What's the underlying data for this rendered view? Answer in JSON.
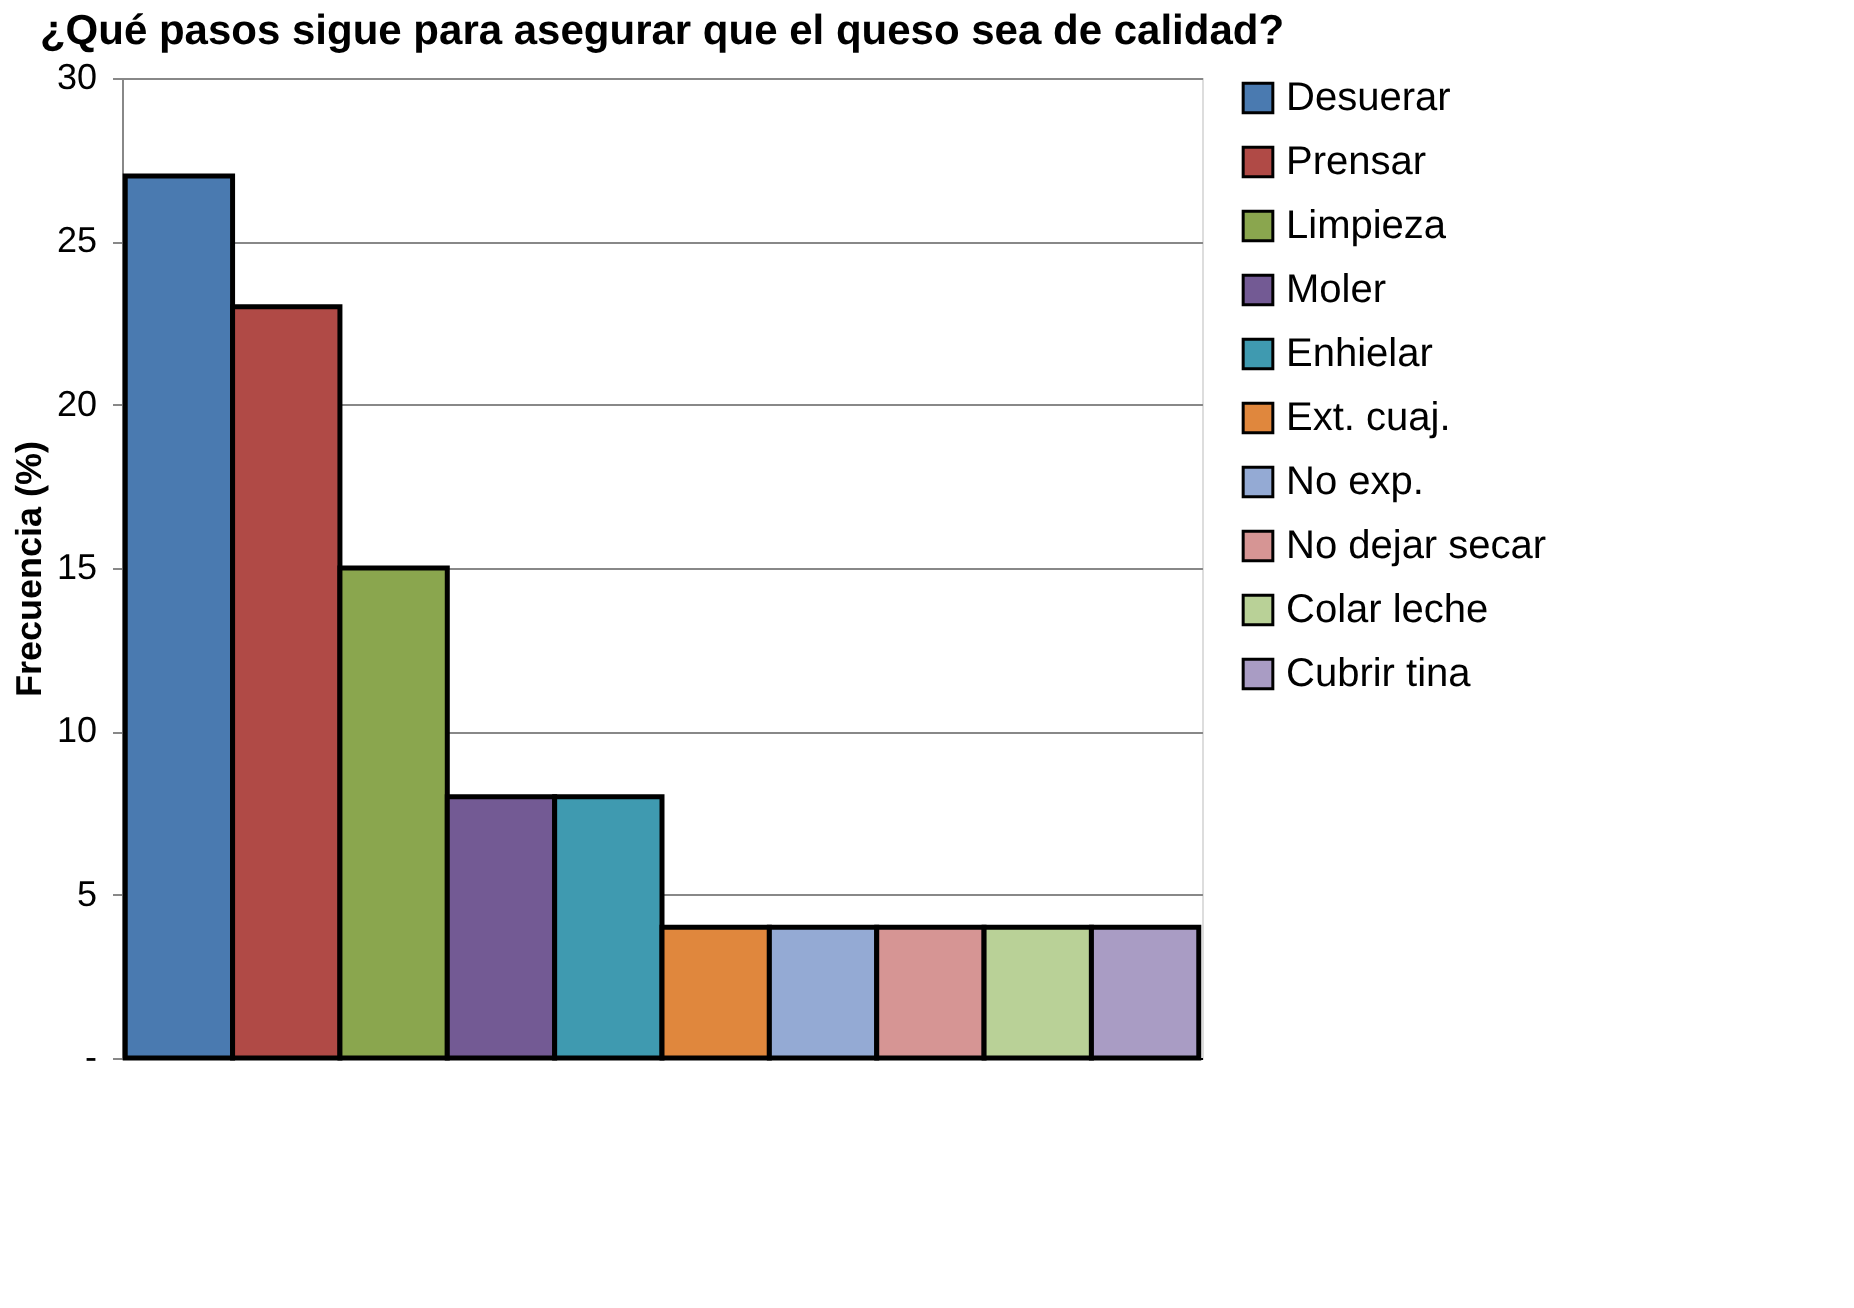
{
  "chart_data": {
    "type": "bar",
    "title": "¿Qué pasos sigue para asegurar que el queso sea de calidad?",
    "ylabel": "Frecuencia (%)",
    "categories": [
      null,
      null,
      null,
      null,
      null,
      null,
      null,
      null,
      null,
      null
    ],
    "series": [
      {
        "name": "Desuerar",
        "color": "#4a7ab0",
        "values": [
          27,
          null,
          null,
          null,
          null,
          null,
          null,
          null,
          null,
          null
        ]
      },
      {
        "name": "Prensar",
        "color": "#b04a46",
        "values": [
          null,
          23,
          null,
          null,
          null,
          null,
          null,
          null,
          null,
          null
        ]
      },
      {
        "name": "Limpieza",
        "color": "#8aa64e",
        "values": [
          null,
          null,
          15,
          null,
          null,
          null,
          null,
          null,
          null,
          null
        ]
      },
      {
        "name": "Moler",
        "color": "#735a94",
        "values": [
          null,
          null,
          null,
          8,
          null,
          null,
          null,
          null,
          null,
          null
        ]
      },
      {
        "name": "Enhielar",
        "color": "#3f9ab0",
        "values": [
          null,
          null,
          null,
          null,
          8,
          null,
          null,
          null,
          null,
          null
        ]
      },
      {
        "name": "Ext. cuaj.",
        "color": "#e0873d",
        "values": [
          null,
          null,
          null,
          null,
          null,
          4,
          null,
          null,
          null,
          null
        ]
      },
      {
        "name": "No exp.",
        "color": "#94aad4",
        "values": [
          null,
          null,
          null,
          null,
          null,
          null,
          4,
          null,
          null,
          null
        ]
      },
      {
        "name": "No dejar secar",
        "color": "#d69594",
        "values": [
          null,
          null,
          null,
          null,
          null,
          null,
          null,
          4,
          null,
          null
        ]
      },
      {
        "name": "Colar leche",
        "color": "#b9d197",
        "values": [
          null,
          null,
          null,
          null,
          null,
          null,
          null,
          null,
          4,
          null
        ]
      },
      {
        "name": "Cubrir tina",
        "color": "#a99cc4",
        "values": [
          null,
          null,
          null,
          null,
          null,
          null,
          null,
          null,
          null,
          4
        ]
      }
    ],
    "ylim": [
      0,
      30
    ],
    "yticks": [
      {
        "value": 0,
        "label": "-"
      },
      5,
      10,
      15,
      20,
      25,
      30
    ],
    "grid": "y",
    "legend": "right",
    "tick_labels": "y"
  }
}
